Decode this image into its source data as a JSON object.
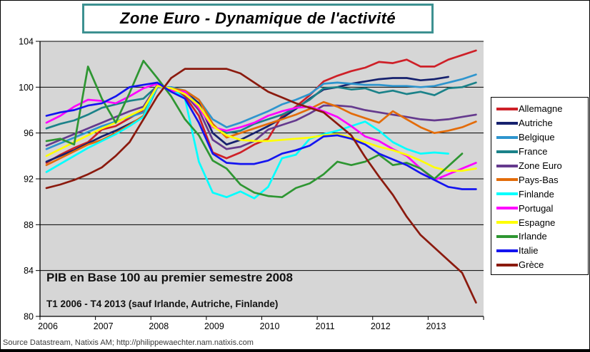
{
  "title": "Zone Euro - Dynamique de l'activité",
  "annotations": {
    "line1": "PIB en Base 100 au premier semestre 2008",
    "line2": "T1 2006 - T4 2013 (sauf Irlande, Autriche, Finlande)"
  },
  "source": "Source Datastream, Natixis AM; http://philippewaechter.nam.natixis.com",
  "title_border_color": "#3D9191",
  "chart_data": {
    "type": "line",
    "title": "Zone Euro - Dynamique de l'activité",
    "xlabel": "",
    "ylabel": "PIB en Base 100 au premier semestre 2008",
    "x_frequency": "quarterly",
    "x_range": [
      "2006-T1",
      "2013-T4"
    ],
    "x_tick_labels": [
      "2006",
      "2007",
      "2008",
      "2009",
      "2010",
      "2011",
      "2012",
      "2013"
    ],
    "y_ticks": [
      80,
      84,
      88,
      92,
      96,
      100,
      104
    ],
    "ylim": [
      80,
      104
    ],
    "grid": true,
    "plot_bg": "#D6D6D6",
    "grid_color": "#000000",
    "legend_position": "right",
    "series": [
      {
        "name": "Allemagne",
        "color": "#CE2028",
        "values": [
          93.4,
          94.1,
          94.7,
          95.2,
          96.3,
          96.6,
          97.3,
          98.0,
          100.2,
          99.8,
          99.2,
          97.5,
          94.3,
          93.8,
          94.3,
          95.0,
          95.5,
          97.5,
          98.3,
          99.3,
          100.5,
          101.0,
          101.4,
          101.7,
          102.2,
          102.1,
          102.4,
          101.8,
          101.8,
          102.4,
          102.8,
          103.2
        ]
      },
      {
        "name": "Autriche",
        "color": "#16216E",
        "values": [
          93.5,
          94.0,
          94.5,
          95.1,
          95.7,
          96.2,
          96.8,
          97.4,
          100.0,
          100.0,
          99.6,
          98.6,
          96.0,
          95.0,
          95.4,
          96.0,
          96.6,
          97.3,
          98.1,
          99.0,
          99.8,
          100.0,
          100.3,
          100.5,
          100.7,
          100.8,
          100.8,
          100.6,
          100.7,
          100.9
        ]
      },
      {
        "name": "Belgique",
        "color": "#2E95CE",
        "values": [
          94.6,
          95.1,
          95.6,
          96.1,
          96.6,
          97.0,
          97.4,
          97.8,
          100.0,
          100.0,
          99.7,
          98.9,
          97.2,
          96.5,
          96.9,
          97.4,
          97.9,
          98.5,
          98.9,
          99.4,
          100.3,
          100.4,
          100.3,
          100.2,
          100.2,
          100.1,
          100.1,
          100.0,
          100.1,
          100.4,
          100.7,
          101.1
        ]
      },
      {
        "name": "France",
        "color": "#1B8289",
        "values": [
          96.4,
          96.8,
          97.1,
          97.6,
          98.2,
          98.5,
          98.8,
          99.0,
          100.1,
          99.9,
          99.6,
          98.4,
          96.6,
          96.0,
          96.2,
          96.8,
          97.2,
          97.6,
          98.2,
          98.9,
          99.9,
          100.0,
          99.8,
          99.9,
          99.5,
          99.7,
          99.4,
          99.6,
          99.3,
          99.9,
          100.0,
          100.4
        ]
      },
      {
        "name": "Zone Euro",
        "color": "#653A8E",
        "values": [
          94.9,
          95.4,
          95.9,
          96.4,
          96.9,
          97.4,
          97.9,
          98.3,
          100.2,
          99.8,
          99.4,
          98.0,
          95.4,
          94.6,
          94.8,
          95.3,
          96.3,
          96.7,
          97.1,
          97.7,
          98.4,
          98.4,
          98.3,
          98.0,
          97.8,
          97.6,
          97.4,
          97.2,
          97.1,
          97.2,
          97.4,
          97.6
        ]
      },
      {
        "name": "Pays-Bas",
        "color": "#E36C09",
        "values": [
          93.2,
          93.8,
          94.4,
          95.0,
          95.4,
          96.0,
          96.7,
          97.5,
          100.1,
          99.9,
          99.7,
          98.9,
          96.8,
          95.6,
          96.0,
          96.4,
          96.8,
          97.2,
          97.6,
          98.1,
          98.7,
          98.3,
          97.7,
          97.3,
          96.9,
          97.9,
          97.2,
          96.5,
          96.0,
          96.2,
          96.5,
          97.0
        ]
      },
      {
        "name": "Finlande",
        "color": "#00FFFF",
        "values": [
          92.6,
          93.3,
          94.0,
          94.7,
          95.3,
          95.9,
          96.6,
          97.4,
          100.1,
          99.9,
          99.0,
          93.5,
          90.8,
          90.4,
          90.9,
          90.3,
          91.3,
          93.8,
          94.1,
          95.5,
          95.9,
          96.2,
          96.6,
          97.0,
          96.2,
          95.2,
          94.6,
          94.2,
          94.3,
          94.2
        ]
      },
      {
        "name": "Portugal",
        "color": "#FF00FF",
        "values": [
          96.9,
          97.5,
          98.3,
          98.9,
          98.8,
          98.6,
          99.2,
          99.9,
          100.3,
          99.7,
          99.6,
          98.2,
          96.5,
          96.2,
          96.5,
          96.9,
          97.5,
          97.9,
          98.2,
          98.3,
          97.9,
          97.4,
          96.6,
          95.7,
          95.3,
          94.6,
          94.0,
          92.9,
          91.9,
          92.4,
          92.9,
          93.4
        ]
      },
      {
        "name": "Espagne",
        "color": "#FFFF00",
        "values": [
          94.0,
          94.6,
          95.2,
          95.8,
          96.4,
          96.9,
          97.5,
          98.1,
          100.1,
          99.9,
          99.4,
          98.4,
          96.6,
          95.8,
          95.4,
          95.3,
          95.3,
          95.4,
          95.5,
          95.6,
          95.8,
          95.9,
          95.6,
          95.2,
          94.8,
          94.5,
          94.1,
          93.6,
          93.0,
          92.7,
          92.7,
          92.9
        ]
      },
      {
        "name": "Irlande",
        "color": "#2E9632",
        "values": [
          95.3,
          95.5,
          95.0,
          101.8,
          99.0,
          96.9,
          99.5,
          102.3,
          100.8,
          99.2,
          97.2,
          95.8,
          93.6,
          92.9,
          91.5,
          90.8,
          90.5,
          90.4,
          91.2,
          91.6,
          92.4,
          93.5,
          93.2,
          93.5,
          94.1,
          93.2,
          93.4,
          92.9,
          92.0,
          93.1,
          94.2
        ]
      },
      {
        "name": "Italie",
        "color": "#1414F0",
        "values": [
          97.5,
          97.8,
          98.0,
          98.4,
          98.6,
          99.2,
          100.0,
          100.2,
          100.4,
          99.6,
          99.0,
          96.9,
          94.2,
          93.4,
          93.3,
          93.3,
          93.6,
          94.2,
          94.5,
          94.9,
          95.7,
          95.8,
          95.5,
          95.0,
          94.2,
          93.7,
          93.2,
          92.5,
          91.9,
          91.3,
          91.1,
          91.1
        ]
      },
      {
        "name": "Grèce",
        "color": "#8B1A0E",
        "values": [
          91.2,
          91.5,
          91.9,
          92.4,
          93.0,
          94.0,
          95.2,
          97.2,
          99.2,
          100.8,
          101.6,
          101.6,
          101.6,
          101.6,
          101.2,
          100.4,
          99.6,
          99.1,
          98.6,
          98.2,
          97.8,
          96.8,
          95.8,
          93.9,
          92.2,
          90.6,
          88.7,
          87.1,
          86.0,
          84.9,
          83.8,
          81.2
        ]
      }
    ]
  }
}
